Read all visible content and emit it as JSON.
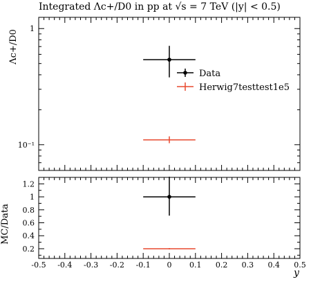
{
  "chart_data": [
    {
      "panel": "main",
      "type": "scatter",
      "title": "Integrated Λc+/D0 in pp at √s = 7 TeV (|y| < 0.5)",
      "ylabel": "Λc+/D0",
      "yscale": "log",
      "ylim": [
        0.06,
        1.25
      ],
      "xlim": [
        -0.5,
        0.5
      ],
      "y_tick_labels": [
        "1",
        "10⁻¹"
      ],
      "y_tick_values": [
        1,
        0.1
      ],
      "legend": {
        "placement": "right",
        "entries": [
          "Data",
          "Herwig7testtest1e5"
        ]
      },
      "series": [
        {
          "name": "Data",
          "color": "#000000",
          "points": [
            {
              "x": 0,
              "xerr": 0.1,
              "y": 0.54,
              "ylo": 0.38,
              "yhi": 0.71
            }
          ]
        },
        {
          "name": "Herwig7testtest1e5",
          "color": "#e8482e",
          "points": [
            {
              "x": 0,
              "xerr": 0.1,
              "y": 0.11,
              "ylo": 0.103,
              "yhi": 0.118
            }
          ]
        }
      ]
    },
    {
      "panel": "ratio",
      "type": "scatter",
      "xlabel": "y",
      "ylabel": "MC/Data",
      "ylim": [
        0.05,
        1.3
      ],
      "xlim": [
        -0.5,
        0.5
      ],
      "y_tick_labels": [
        "0.2",
        "0.4",
        "0.6",
        "0.8",
        "1",
        "1.2"
      ],
      "x_tick_labels": [
        "-0.5",
        "-0.4",
        "-0.3",
        "-0.2",
        "-0.1",
        "0",
        "0.1",
        "0.2",
        "0.3",
        "0.4",
        "0.5"
      ],
      "series": [
        {
          "name": "Data",
          "color": "#000000",
          "points": [
            {
              "x": 0,
              "xerr": 0.1,
              "y": 1.0,
              "ylo": 0.71,
              "yhi": 1.31
            }
          ]
        },
        {
          "name": "Herwig7testtest1e5",
          "color": "#e8482e",
          "points": [
            {
              "x": 0,
              "xerr": 0.1,
              "y": 0.2,
              "ylo": 0.19,
              "yhi": 0.21
            }
          ]
        }
      ]
    }
  ]
}
